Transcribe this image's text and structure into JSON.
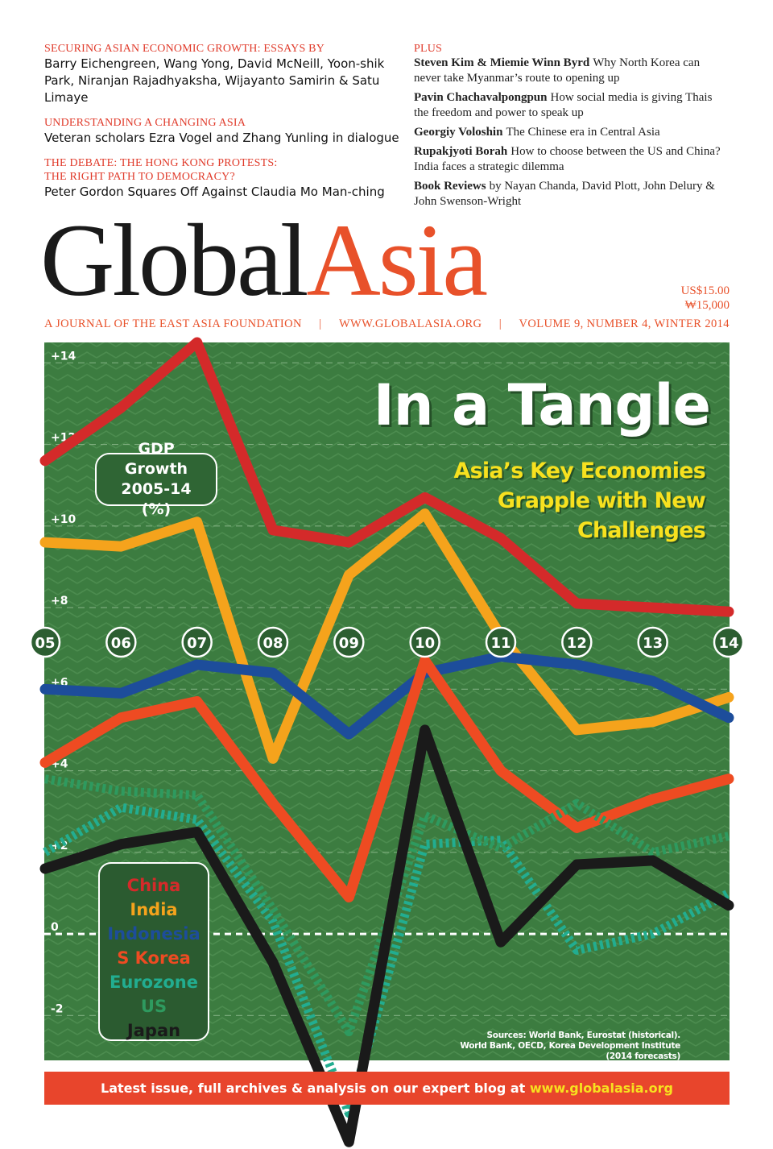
{
  "header": {
    "left": [
      {
        "heading": "SECURING ASIAN ECONOMIC GROWTH: ESSAYS BY",
        "text": "Barry Eichengreen, Wang Yong, David McNeill, Yoon-shik Park, Niranjan Rajadhyaksha, Wijayanto Samirin & Satu Limaye"
      },
      {
        "heading": "UNDERSTANDING A CHANGING ASIA",
        "text": "Veteran scholars Ezra Vogel and Zhang Yunling in dialogue"
      },
      {
        "heading": "THE DEBATE: THE HONG KONG PROTESTS: THE RIGHT PATH TO DEMOCRACY?",
        "text": "Peter Gordon Squares Off Against Claudia Mo Man-ching"
      }
    ],
    "plus": "PLUS",
    "items": [
      {
        "name": "Steven Kim & Miemie Winn Byrd",
        "text": "Why North Korea can never take Myanmar’s route to opening up"
      },
      {
        "name": "Pavin Chachavalpongpun",
        "text": "How social media is giving Thais the freedom and power to speak up"
      },
      {
        "name": "Georgiy Voloshin",
        "text": "The Chinese era in Central Asia"
      },
      {
        "name": "Rupakjyoti Borah",
        "text": "How to choose between the US and China? India faces a strategic dilemma"
      },
      {
        "name": "Book Reviews",
        "text": "by Nayan Chanda, David Plott, John Delury & John Swenson-Wright"
      }
    ]
  },
  "masthead": {
    "global": "Global",
    "asia": "Asia",
    "price_usd": "US$15.00",
    "price_krw": "₩15,000",
    "tagline": [
      "A JOURNAL OF THE EAST ASIA FOUNDATION",
      "WWW.GLOBALASIA.ORG",
      "VOLUME 9, NUMBER 4, WINTER 2014"
    ]
  },
  "cover": {
    "headline": "In a Tangle",
    "subheadline": "Asia’s Key Economies Grapple with New Challenges",
    "sources": "Sources: World Bank, Eurostat (historical). World Bank, OECD, Korea Development Institute (2014 forecasts)",
    "banner_text": "Latest issue, full archives & analysis on our expert blog at",
    "banner_url": "www.globalasia.org"
  },
  "chart_data": {
    "type": "line",
    "title": "GDP Growth 2005-14 (%)",
    "categories": [
      "05",
      "06",
      "07",
      "08",
      "09",
      "10",
      "11",
      "12",
      "13",
      "14"
    ],
    "series": [
      {
        "name": "China",
        "color": "#d42a2a",
        "values": [
          11.6,
          12.9,
          14.5,
          9.9,
          9.6,
          10.7,
          9.7,
          8.1,
          8.0,
          7.9
        ]
      },
      {
        "name": "India",
        "color": "#f5a31c",
        "values": [
          9.6,
          9.5,
          10.1,
          4.3,
          8.8,
          10.3,
          7.3,
          5.0,
          5.2,
          5.8
        ]
      },
      {
        "name": "Indonesia",
        "color": "#1d4d9b",
        "values": [
          6.0,
          5.9,
          6.6,
          6.4,
          4.9,
          6.4,
          6.8,
          6.6,
          6.2,
          5.3
        ]
      },
      {
        "name": "S Korea",
        "color": "#ee4b22",
        "values": [
          4.2,
          5.3,
          5.7,
          3.2,
          0.9,
          6.7,
          4.0,
          2.6,
          3.3,
          3.8
        ]
      },
      {
        "name": "Eurozone",
        "color": "#22ad90",
        "dashed": true,
        "values": [
          2.0,
          3.1,
          2.8,
          0.3,
          -4.4,
          2.2,
          2.3,
          -0.4,
          0.0,
          1.0
        ]
      },
      {
        "name": "US",
        "color": "#2e9a5f",
        "dashed": true,
        "values": [
          3.8,
          3.5,
          3.4,
          0.6,
          -2.4,
          2.9,
          2.1,
          3.2,
          2.0,
          2.4
        ]
      },
      {
        "name": "Japan",
        "color": "#1a1a1a",
        "values": [
          1.6,
          2.2,
          2.5,
          -0.7,
          -5.1,
          5.0,
          -0.2,
          1.7,
          1.8,
          0.7
        ]
      }
    ],
    "ylim": [
      -3.1,
      14.5
    ],
    "yticks": [
      {
        "value": 14,
        "label": "+14"
      },
      {
        "value": 12,
        "label": "+12"
      },
      {
        "value": 10,
        "label": "+10"
      },
      {
        "value": 8,
        "label": "+8"
      },
      {
        "value": 6,
        "label": "+6"
      },
      {
        "value": 4,
        "label": "+4"
      },
      {
        "value": 2,
        "label": "+2"
      },
      0,
      -2
    ],
    "grid": true
  }
}
